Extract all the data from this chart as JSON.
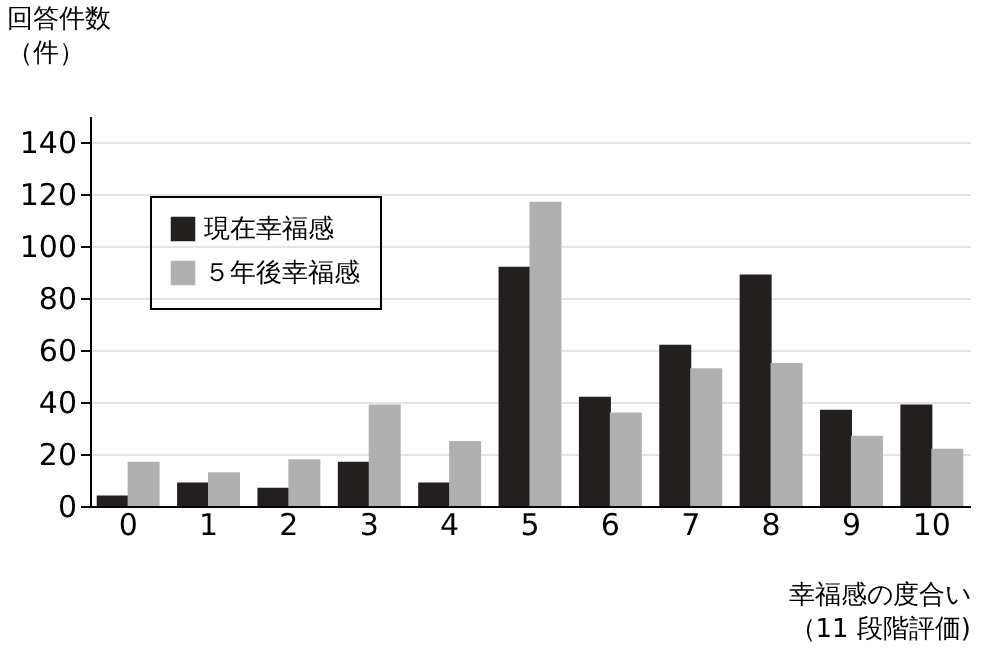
{
  "chart_data": {
    "type": "bar",
    "ylabel": "回答件数（件）",
    "xlabel": "幸福感の度合い（11 段階評価)",
    "categories": [
      "0",
      "1",
      "2",
      "3",
      "4",
      "5",
      "6",
      "7",
      "8",
      "9",
      "10"
    ],
    "series": [
      {
        "name": "現在幸福感",
        "color": "#231f1f",
        "values": [
          4,
          9,
          7,
          17,
          9,
          92,
          42,
          62,
          89,
          37,
          39
        ]
      },
      {
        "name": "５年後幸福感",
        "color": "#b0b0b0",
        "values": [
          17,
          13,
          18,
          39,
          25,
          117,
          36,
          53,
          55,
          27,
          22
        ]
      }
    ],
    "ylim": [
      0,
      150
    ],
    "yticks": [
      0,
      20,
      40,
      60,
      80,
      100,
      120,
      140
    ],
    "grid": "y",
    "legend": "top left"
  }
}
